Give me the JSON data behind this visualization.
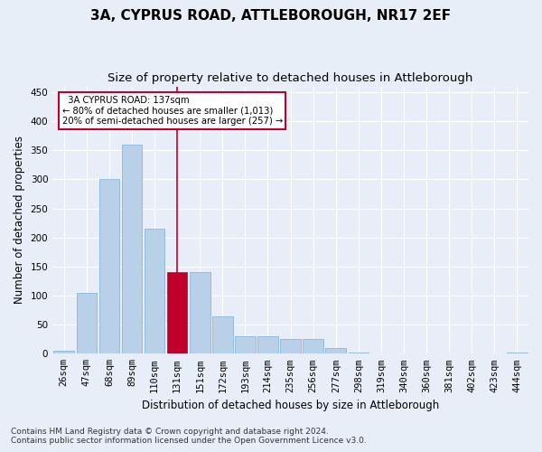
{
  "title": "3A, CYPRUS ROAD, ATTLEBOROUGH, NR17 2EF",
  "subtitle": "Size of property relative to detached houses in Attleborough",
  "xlabel": "Distribution of detached houses by size in Attleborough",
  "ylabel": "Number of detached properties",
  "footnote1": "Contains HM Land Registry data © Crown copyright and database right 2024.",
  "footnote2": "Contains public sector information licensed under the Open Government Licence v3.0.",
  "categories": [
    "26sqm",
    "47sqm",
    "68sqm",
    "89sqm",
    "110sqm",
    "131sqm",
    "151sqm",
    "172sqm",
    "193sqm",
    "214sqm",
    "235sqm",
    "256sqm",
    "277sqm",
    "298sqm",
    "319sqm",
    "340sqm",
    "360sqm",
    "381sqm",
    "402sqm",
    "423sqm",
    "444sqm"
  ],
  "values": [
    5,
    105,
    300,
    360,
    215,
    140,
    140,
    65,
    30,
    30,
    25,
    25,
    10,
    2,
    1,
    0,
    0,
    0,
    0,
    0,
    2
  ],
  "bar_color": "#b8d0e8",
  "bar_edge_color": "#7aafd4",
  "highlight_bar_index": 5,
  "highlight_bar_color": "#c0002a",
  "vline_color": "#c0002a",
  "annotation_text": "  3A CYPRUS ROAD: 137sqm\n← 80% of detached houses are smaller (1,013)\n20% of semi-detached houses are larger (257) →",
  "annotation_box_color": "#ffffff",
  "annotation_box_edge": "#c0002a",
  "ylim": [
    0,
    460
  ],
  "yticks": [
    0,
    50,
    100,
    150,
    200,
    250,
    300,
    350,
    400,
    450
  ],
  "bg_color": "#e8eef8",
  "plot_bg_color": "#e8eef8",
  "grid_color": "#ffffff",
  "title_fontsize": 11,
  "subtitle_fontsize": 9.5,
  "axis_label_fontsize": 8.5,
  "tick_fontsize": 7.5,
  "footnote_fontsize": 6.5
}
